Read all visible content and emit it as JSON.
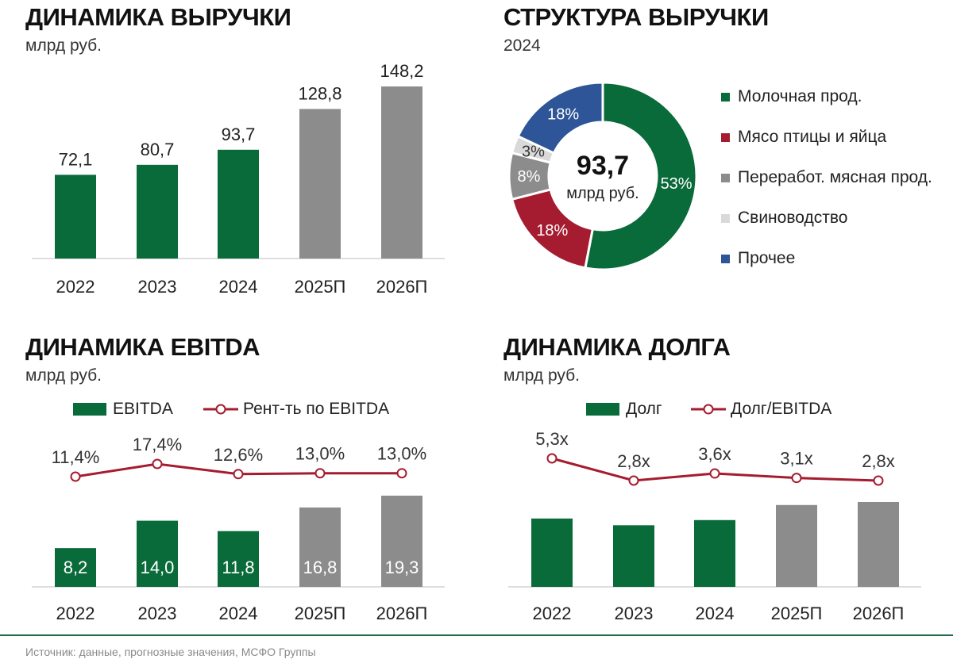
{
  "colors": {
    "green": "#0a6b3a",
    "gray": "#8c8c8c",
    "red": "#a51c30",
    "lightgray": "#d9d9d9",
    "blue": "#2e5597",
    "axis": "#bdbdbd",
    "footer_line": "#1f6b45"
  },
  "revenue": {
    "title": "ДИНАМИКА ВЫРУЧКИ",
    "unit": "млрд руб.",
    "chart_data": {
      "type": "bar",
      "categories": [
        "2022",
        "2023",
        "2024",
        "2025П",
        "2026П"
      ],
      "values": [
        72.1,
        80.7,
        93.7,
        128.8,
        148.2
      ],
      "value_labels": [
        "72,1",
        "80,7",
        "93,7",
        "128,8",
        "148,2"
      ],
      "forecast": [
        false,
        false,
        false,
        true,
        true
      ],
      "ylim": [
        0,
        160
      ]
    }
  },
  "structure": {
    "title": "СТРУКТУРА ВЫРУЧКИ",
    "subtitle": "2024",
    "center_value": "93,7",
    "center_unit": "млрд руб.",
    "chart_data": {
      "type": "pie",
      "donut": true,
      "start": "top, clockwise",
      "slices": [
        {
          "name": "Молочная прод.",
          "value": 53,
          "label": "53%",
          "color": "#0a6b3a"
        },
        {
          "name": "Мясо птицы и яйца",
          "value": 18,
          "label": "18%",
          "color": "#a51c30"
        },
        {
          "name": "Переработ. мясная прод.",
          "value": 8,
          "label": "8%",
          "color": "#8c8c8c"
        },
        {
          "name": "Свиноводство",
          "value": 3,
          "label": "3%",
          "color": "#d9d9d9"
        },
        {
          "name": "Прочее",
          "value": 18,
          "label": "18%",
          "color": "#2e5597"
        }
      ],
      "legend_position": "right"
    }
  },
  "ebitda": {
    "title": "ДИНАМИКА EBITDA",
    "unit": "млрд руб.",
    "legend": {
      "bar": "EBITDA",
      "line": "Рент-ть по EBITDA"
    },
    "chart_data": {
      "type": "bar",
      "categories": [
        "2022",
        "2023",
        "2024",
        "2025П",
        "2026П"
      ],
      "series": [
        {
          "name": "EBITDA",
          "kind": "bar",
          "values": [
            8.2,
            14.0,
            11.8,
            16.8,
            19.3
          ],
          "labels": [
            "8,2",
            "14,0",
            "11,8",
            "16,8",
            "19,3"
          ]
        },
        {
          "name": "Рент-ть по EBITDA",
          "kind": "line",
          "values": [
            11.4,
            17.4,
            12.6,
            13.0,
            13.0
          ],
          "labels": [
            "11,4%",
            "17,4%",
            "12,6%",
            "13,0%",
            "13,0%"
          ]
        }
      ],
      "forecast": [
        false,
        false,
        false,
        true,
        true
      ],
      "ylim": [
        0,
        20
      ]
    }
  },
  "debt": {
    "title": "ДИНАМИКА ДОЛГА",
    "unit": "млрд руб.",
    "legend": {
      "bar": "Долг",
      "line": "Долг/EBITDA"
    },
    "chart_data": {
      "type": "bar",
      "categories": [
        "2022",
        "2023",
        "2024",
        "2025П",
        "2026П"
      ],
      "series": [
        {
          "name": "Долг",
          "kind": "bar",
          "values": [
            43.5,
            39.2,
            42.5,
            52.1,
            54.0
          ]
        },
        {
          "name": "Долг/EBITDA",
          "kind": "line",
          "values": [
            5.3,
            2.8,
            3.6,
            3.1,
            2.8
          ],
          "labels": [
            "5,3x",
            "2,8x",
            "3,6x",
            "3,1x",
            "2,8x"
          ]
        }
      ],
      "forecast": [
        false,
        false,
        false,
        true,
        true
      ]
    }
  },
  "footer": {
    "source": "Источник: данные, прогнозные значения, МСФО Группы"
  }
}
